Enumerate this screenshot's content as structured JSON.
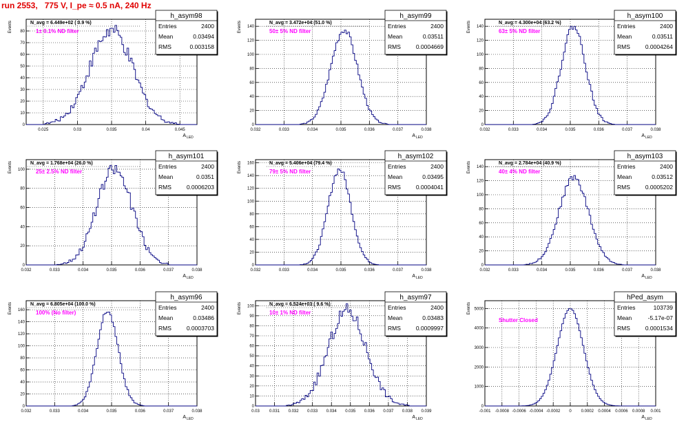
{
  "page": {
    "run_title": "run 2553,   775 V, I_pe ≈ 0.5 nA, 240 Hz",
    "ylabel": "Events",
    "xlabel": "A",
    "xlabel_sub": "LED",
    "stats_labels": {
      "entries": "Entries",
      "mean": "Mean",
      "rms": "RMS"
    }
  },
  "chart_data": [
    {
      "type": "bar",
      "title": "h_asym98",
      "annotation": "N_avg = 6.449e+02 ( 0.9 %)",
      "filter_label": "1± 0.1% ND filter",
      "stats": {
        "entries": "2400",
        "mean": "0.03494",
        "rms": "0.003158"
      },
      "xlim": [
        0.0225,
        0.0475
      ],
      "xticks": [
        0.025,
        0.03,
        0.035,
        0.04,
        0.045
      ],
      "xtick_labels": [
        "0.025",
        "0.03",
        "0.035",
        "0.04",
        "0.045"
      ],
      "ylim": [
        0,
        90
      ],
      "yticks": [
        0,
        10,
        20,
        30,
        40,
        50,
        60,
        70,
        80
      ],
      "ytick_labels": [
        "0",
        "10",
        "20",
        "30",
        "40",
        "50",
        "60",
        "70",
        "80"
      ],
      "hist": {
        "mean": 0.03494,
        "rms": 0.003158,
        "peak": 80,
        "bin": 0.00025,
        "seed": 7
      }
    },
    {
      "type": "bar",
      "title": "h_asym99",
      "annotation": "N_avg = 3.472e+04 (51.0 %)",
      "filter_label": "50± 5% ND filter",
      "stats": {
        "entries": "2400",
        "mean": "0.03511",
        "rms": "0.0004669"
      },
      "xlim": [
        0.032,
        0.038
      ],
      "xticks": [
        0.032,
        0.033,
        0.034,
        0.035,
        0.036,
        0.037,
        0.038
      ],
      "xtick_labels": [
        "0.032",
        "0.033",
        "0.034",
        "0.035",
        "0.036",
        "0.037",
        "0.038"
      ],
      "ylim": [
        0,
        150
      ],
      "yticks": [
        0,
        20,
        40,
        60,
        80,
        100,
        120,
        140
      ],
      "ytick_labels": [
        "0",
        "20",
        "40",
        "60",
        "80",
        "100",
        "120",
        "140"
      ],
      "hist": {
        "mean": 0.03511,
        "rms": 0.0004669,
        "peak": 135,
        "bin": 6e-05,
        "seed": 11
      }
    },
    {
      "type": "bar",
      "title": "h_asym100",
      "annotation": "N_avg = 4.300e+04 (63.2 %)",
      "filter_label": "63± 5% ND filter",
      "stats": {
        "entries": "2400",
        "mean": "0.03511",
        "rms": "0.0004264"
      },
      "xlim": [
        0.032,
        0.038
      ],
      "xticks": [
        0.032,
        0.033,
        0.034,
        0.035,
        0.036,
        0.037,
        0.038
      ],
      "xtick_labels": [
        "0.032",
        "0.033",
        "0.034",
        "0.035",
        "0.036",
        "0.037",
        "0.038"
      ],
      "ylim": [
        0,
        150
      ],
      "yticks": [
        0,
        20,
        40,
        60,
        80,
        100,
        120,
        140
      ],
      "ytick_labels": [
        "0",
        "20",
        "40",
        "60",
        "80",
        "100",
        "120",
        "140"
      ],
      "hist": {
        "mean": 0.03511,
        "rms": 0.0004264,
        "peak": 140,
        "bin": 6e-05,
        "seed": 19
      }
    },
    {
      "type": "bar",
      "title": "h_asym101",
      "annotation": "N_avg = 1.768e+04 (26.0 %)",
      "filter_label": "25± 2.5% ND filter",
      "stats": {
        "entries": "2400",
        "mean": "0.0351",
        "rms": "0.0006203"
      },
      "xlim": [
        0.032,
        0.038
      ],
      "xticks": [
        0.032,
        0.033,
        0.034,
        0.035,
        0.036,
        0.037,
        0.038
      ],
      "xtick_labels": [
        "0.032",
        "0.033",
        "0.034",
        "0.035",
        "0.036",
        "0.037",
        "0.038"
      ],
      "ylim": [
        0,
        110
      ],
      "yticks": [
        0,
        20,
        40,
        60,
        80,
        100
      ],
      "ytick_labels": [
        "0",
        "20",
        "40",
        "60",
        "80",
        "100"
      ],
      "hist": {
        "mean": 0.0351,
        "rms": 0.0006203,
        "peak": 100,
        "bin": 6e-05,
        "seed": 23
      }
    },
    {
      "type": "bar",
      "title": "h_asym102",
      "annotation": "N_avg = 5.406e+04 (79.4 %)",
      "filter_label": "79± 5% ND filter",
      "stats": {
        "entries": "2400",
        "mean": "0.03495",
        "rms": "0.0004041"
      },
      "xlim": [
        0.032,
        0.038
      ],
      "xticks": [
        0.032,
        0.033,
        0.034,
        0.035,
        0.036,
        0.037,
        0.038
      ],
      "xtick_labels": [
        "0.032",
        "0.033",
        "0.034",
        "0.035",
        "0.036",
        "0.037",
        "0.038"
      ],
      "ylim": [
        0,
        165
      ],
      "yticks": [
        0,
        20,
        40,
        60,
        80,
        100,
        120,
        140,
        160
      ],
      "ytick_labels": [
        "0",
        "20",
        "40",
        "60",
        "80",
        "100",
        "120",
        "140",
        "160"
      ],
      "hist": {
        "mean": 0.03495,
        "rms": 0.0004041,
        "peak": 150,
        "bin": 6e-05,
        "seed": 29
      }
    },
    {
      "type": "bar",
      "title": "h_asym103",
      "annotation": "N_avg = 2.784e+04 (40.9 %)",
      "filter_label": "40± 4% ND filter",
      "stats": {
        "entries": "2400",
        "mean": "0.03512",
        "rms": "0.0005202"
      },
      "xlim": [
        0.032,
        0.038
      ],
      "xticks": [
        0.032,
        0.033,
        0.034,
        0.035,
        0.036,
        0.037,
        0.038
      ],
      "xtick_labels": [
        "0.032",
        "0.033",
        "0.034",
        "0.035",
        "0.036",
        "0.037",
        "0.038"
      ],
      "ylim": [
        0,
        150
      ],
      "yticks": [
        0,
        20,
        40,
        60,
        80,
        100,
        120,
        140
      ],
      "ytick_labels": [
        "0",
        "20",
        "40",
        "60",
        "80",
        "100",
        "120",
        "140"
      ],
      "hist": {
        "mean": 0.03512,
        "rms": 0.0005202,
        "peak": 125,
        "bin": 6e-05,
        "seed": 31
      }
    },
    {
      "type": "bar",
      "title": "h_asym96",
      "annotation": "N_avg = 6.805e+04 (100.0 %)",
      "filter_label": "100% (No filter)",
      "stats": {
        "entries": "2400",
        "mean": "0.03486",
        "rms": "0.0003703"
      },
      "xlim": [
        0.032,
        0.038
      ],
      "xticks": [
        0.032,
        0.033,
        0.034,
        0.035,
        0.036,
        0.037,
        0.038
      ],
      "xtick_labels": [
        "0.032",
        "0.033",
        "0.034",
        "0.035",
        "0.036",
        "0.037",
        "0.038"
      ],
      "ylim": [
        0,
        175
      ],
      "yticks": [
        0,
        20,
        40,
        60,
        80,
        100,
        120,
        140,
        160
      ],
      "ytick_labels": [
        "0",
        "20",
        "40",
        "60",
        "80",
        "100",
        "120",
        "140",
        "160"
      ],
      "hist": {
        "mean": 0.03486,
        "rms": 0.0003703,
        "peak": 160,
        "bin": 6e-05,
        "seed": 37
      }
    },
    {
      "type": "bar",
      "title": "h_asym97",
      "annotation": "N_avg = 6.524e+03 ( 9.6 %)",
      "filter_label": "10± 1% ND filter",
      "stats": {
        "entries": "2400",
        "mean": "0.03483",
        "rms": "0.0009997"
      },
      "xlim": [
        0.03,
        0.039
      ],
      "xticks": [
        0.03,
        0.031,
        0.032,
        0.033,
        0.034,
        0.035,
        0.036,
        0.037,
        0.038,
        0.039
      ],
      "xtick_labels": [
        "0.03",
        "0.031",
        "0.032",
        "0.033",
        "0.034",
        "0.035",
        "0.036",
        "0.037",
        "0.038",
        "0.039"
      ],
      "ylim": [
        0,
        105
      ],
      "yticks": [
        0,
        10,
        20,
        30,
        40,
        50,
        60,
        70,
        80,
        90,
        100
      ],
      "ytick_labels": [
        "0",
        "10",
        "20",
        "30",
        "40",
        "50",
        "60",
        "70",
        "80",
        "90",
        "100"
      ],
      "hist": {
        "mean": 0.03483,
        "rms": 0.0009997,
        "peak": 95,
        "bin": 9e-05,
        "seed": 41
      }
    },
    {
      "type": "bar",
      "title": "hPed_asym",
      "annotation": "",
      "filter_label": "Shutter Closed",
      "stats": {
        "entries": "103739",
        "mean": "-5.17e-07",
        "rms": "0.0001534"
      },
      "xlim": [
        -0.001,
        0.001
      ],
      "xticks": [
        -0.001,
        -0.0008,
        -0.0006,
        -0.0004,
        -0.0002,
        0,
        0.0002,
        0.0004,
        0.0006,
        0.0008,
        0.001
      ],
      "xtick_labels": [
        "-0.001",
        "-0.0008",
        "-0.0006",
        "-0.0004",
        "-0.0002",
        "0",
        "0.0002",
        "0.0004",
        "0.0006",
        "0.0008",
        "0.001"
      ],
      "ylim": [
        0,
        5400
      ],
      "yticks": [
        0,
        1000,
        2000,
        3000,
        4000,
        5000
      ],
      "ytick_labels": [
        "0",
        "1000",
        "2000",
        "3000",
        "4000",
        "5000"
      ],
      "hist": {
        "mean": 0,
        "rms": 0.0001534,
        "peak": 5000,
        "bin": 2e-05,
        "seed": 0
      }
    }
  ]
}
